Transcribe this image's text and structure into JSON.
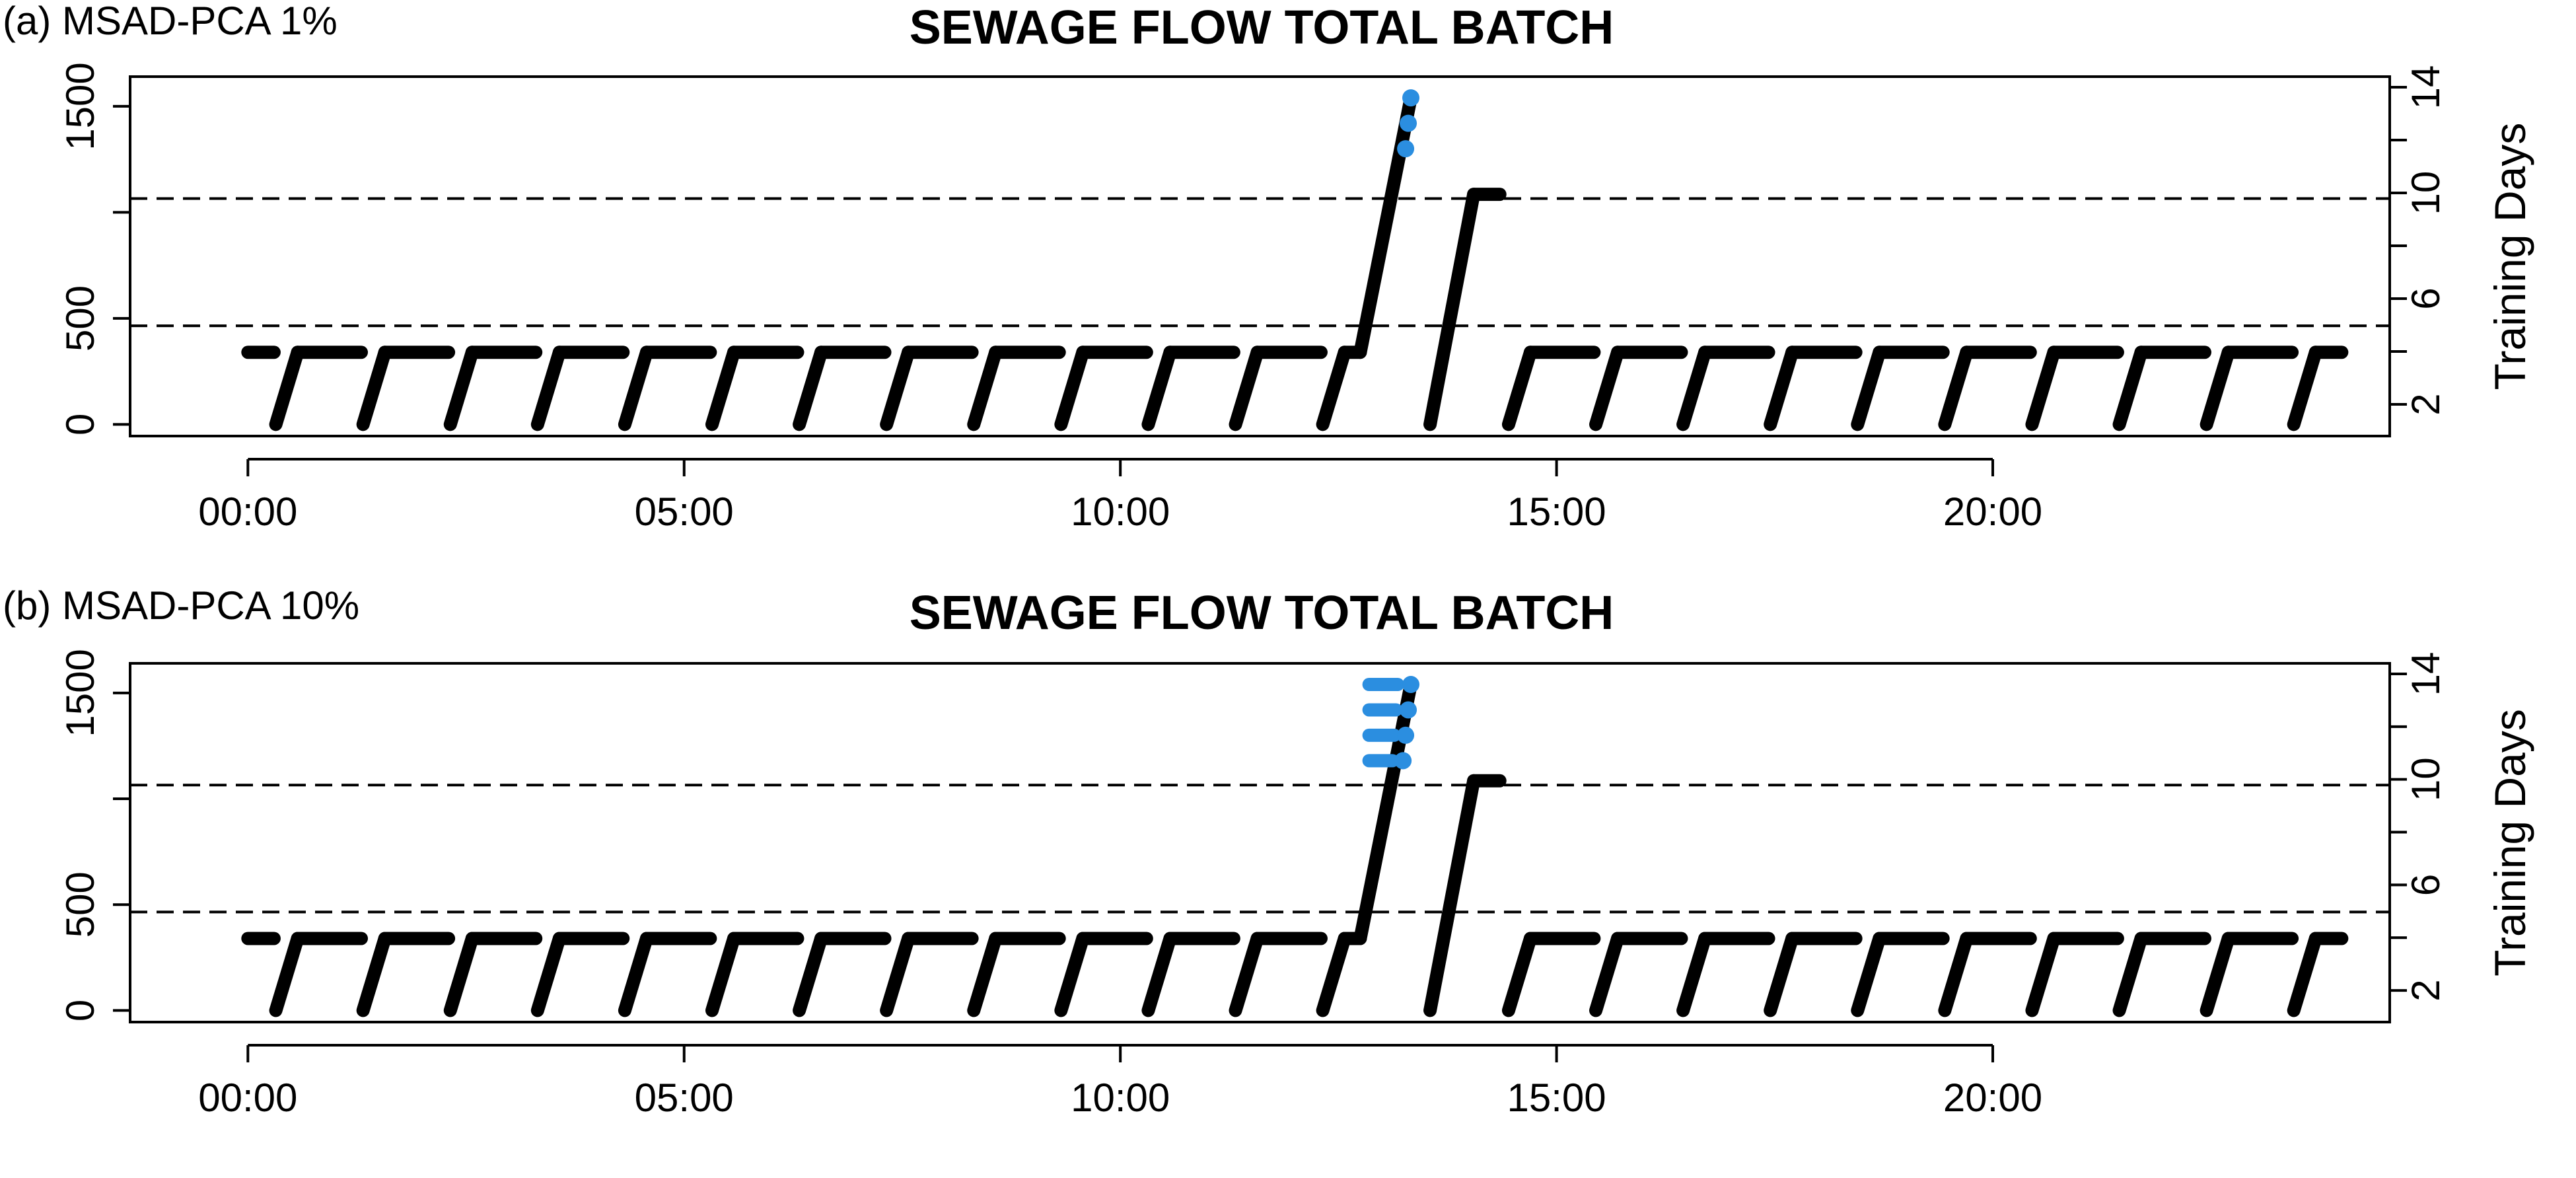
{
  "figure": {
    "background": "#ffffff"
  },
  "panels": [
    {
      "label": "(a) MSAD-PCA 1%",
      "title": "SEWAGE FLOW TOTAL BATCH"
    },
    {
      "label": "(b) MSAD-PCA 10%",
      "title": "SEWAGE FLOW TOTAL BATCH"
    }
  ],
  "colors": {
    "observations": "#000000",
    "alarms": "#2b8ee0",
    "threshold": "#000000"
  },
  "chart_data": [
    {
      "type": "scatter",
      "title": "SEWAGE FLOW TOTAL BATCH",
      "xlabel": "",
      "ylabel": "",
      "y2label": "Training Days",
      "x_unit": "hours",
      "xlim": [
        -1.35,
        24.55
      ],
      "ylim": [
        -55,
        1640
      ],
      "y2lim": [
        0.8,
        14.4
      ],
      "xticks": [
        {
          "value": 0,
          "label": "00:00"
        },
        {
          "value": 5,
          "label": "05:00"
        },
        {
          "value": 10,
          "label": "10:00"
        },
        {
          "value": 15,
          "label": "15:00"
        },
        {
          "value": 20,
          "label": "20:00"
        }
      ],
      "yticks": [
        {
          "value": 0,
          "label": "0"
        },
        {
          "value": 500,
          "label": "500"
        },
        {
          "value": 1000,
          "label": ""
        },
        {
          "value": 1500,
          "label": "1500"
        }
      ],
      "y2ticks": [
        {
          "value": 2,
          "label": "2"
        },
        {
          "value": 4,
          "label": ""
        },
        {
          "value": 6,
          "label": "6"
        },
        {
          "value": 8,
          "label": ""
        },
        {
          "value": 10,
          "label": "10"
        },
        {
          "value": 12,
          "label": ""
        },
        {
          "value": 14,
          "label": "14"
        }
      ],
      "thresholds": [
        465,
        1065
      ],
      "cycles": {
        "low_cycles": [
          0.32,
          1.32,
          2.32,
          3.32,
          4.32,
          5.32,
          6.32,
          7.32,
          8.32,
          9.32,
          10.32,
          11.32,
          12.32
        ],
        "low_cycles_late": [
          14.45,
          15.45,
          16.45,
          17.45,
          18.45,
          19.45,
          20.45,
          21.45,
          22.45,
          23.45
        ],
        "ramp_duration": 0.25,
        "plateau_value": 340,
        "plateau_end": 24.0,
        "first_plateau_start": 0.0
      },
      "special_ramps": [
        {
          "start": 12.75,
          "end": 13.33,
          "from": 340,
          "to": 1540
        },
        {
          "start": 13.55,
          "end": 14.05,
          "from": 0,
          "to": 1085
        }
      ],
      "special_plateau": {
        "start": 14.05,
        "end": 14.35,
        "value": 1085
      },
      "alarms": [
        {
          "x": 13.33,
          "y": 1540
        },
        {
          "x": 13.3,
          "y": 1420
        },
        {
          "x": 13.27,
          "y": 1300
        }
      ],
      "alarm_bars": []
    },
    {
      "type": "scatter",
      "title": "SEWAGE FLOW TOTAL BATCH",
      "xlabel": "",
      "ylabel": "",
      "y2label": "Training Days",
      "x_unit": "hours",
      "xlim": [
        -1.35,
        24.55
      ],
      "ylim": [
        -55,
        1640
      ],
      "y2lim": [
        0.8,
        14.4
      ],
      "xticks": [
        {
          "value": 0,
          "label": "00:00"
        },
        {
          "value": 5,
          "label": "05:00"
        },
        {
          "value": 10,
          "label": "10:00"
        },
        {
          "value": 15,
          "label": "15:00"
        },
        {
          "value": 20,
          "label": "20:00"
        }
      ],
      "yticks": [
        {
          "value": 0,
          "label": "0"
        },
        {
          "value": 500,
          "label": "500"
        },
        {
          "value": 1000,
          "label": ""
        },
        {
          "value": 1500,
          "label": "1500"
        }
      ],
      "y2ticks": [
        {
          "value": 2,
          "label": "2"
        },
        {
          "value": 4,
          "label": ""
        },
        {
          "value": 6,
          "label": "6"
        },
        {
          "value": 8,
          "label": ""
        },
        {
          "value": 10,
          "label": "10"
        },
        {
          "value": 12,
          "label": ""
        },
        {
          "value": 14,
          "label": "14"
        }
      ],
      "thresholds": [
        465,
        1065
      ],
      "cycles": {
        "low_cycles": [
          0.32,
          1.32,
          2.32,
          3.32,
          4.32,
          5.32,
          6.32,
          7.32,
          8.32,
          9.32,
          10.32,
          11.32,
          12.32
        ],
        "low_cycles_late": [
          14.45,
          15.45,
          16.45,
          17.45,
          18.45,
          19.45,
          20.45,
          21.45,
          22.45,
          23.45
        ],
        "ramp_duration": 0.25,
        "plateau_value": 340,
        "plateau_end": 24.0,
        "first_plateau_start": 0.0
      },
      "special_ramps": [
        {
          "start": 12.75,
          "end": 13.33,
          "from": 340,
          "to": 1540
        },
        {
          "start": 13.55,
          "end": 14.05,
          "from": 0,
          "to": 1085
        }
      ],
      "special_plateau": {
        "start": 14.05,
        "end": 14.35,
        "value": 1085
      },
      "alarms": [
        {
          "x": 13.33,
          "y": 1540
        },
        {
          "x": 13.3,
          "y": 1420
        },
        {
          "x": 13.27,
          "y": 1300
        },
        {
          "x": 13.24,
          "y": 1180
        }
      ],
      "alarm_bars": [
        {
          "from": 12.85,
          "to": 13.18,
          "y": 1540
        },
        {
          "from": 12.85,
          "to": 13.16,
          "y": 1420
        },
        {
          "from": 12.85,
          "to": 13.14,
          "y": 1300
        },
        {
          "from": 12.85,
          "to": 13.12,
          "y": 1180
        }
      ]
    }
  ]
}
